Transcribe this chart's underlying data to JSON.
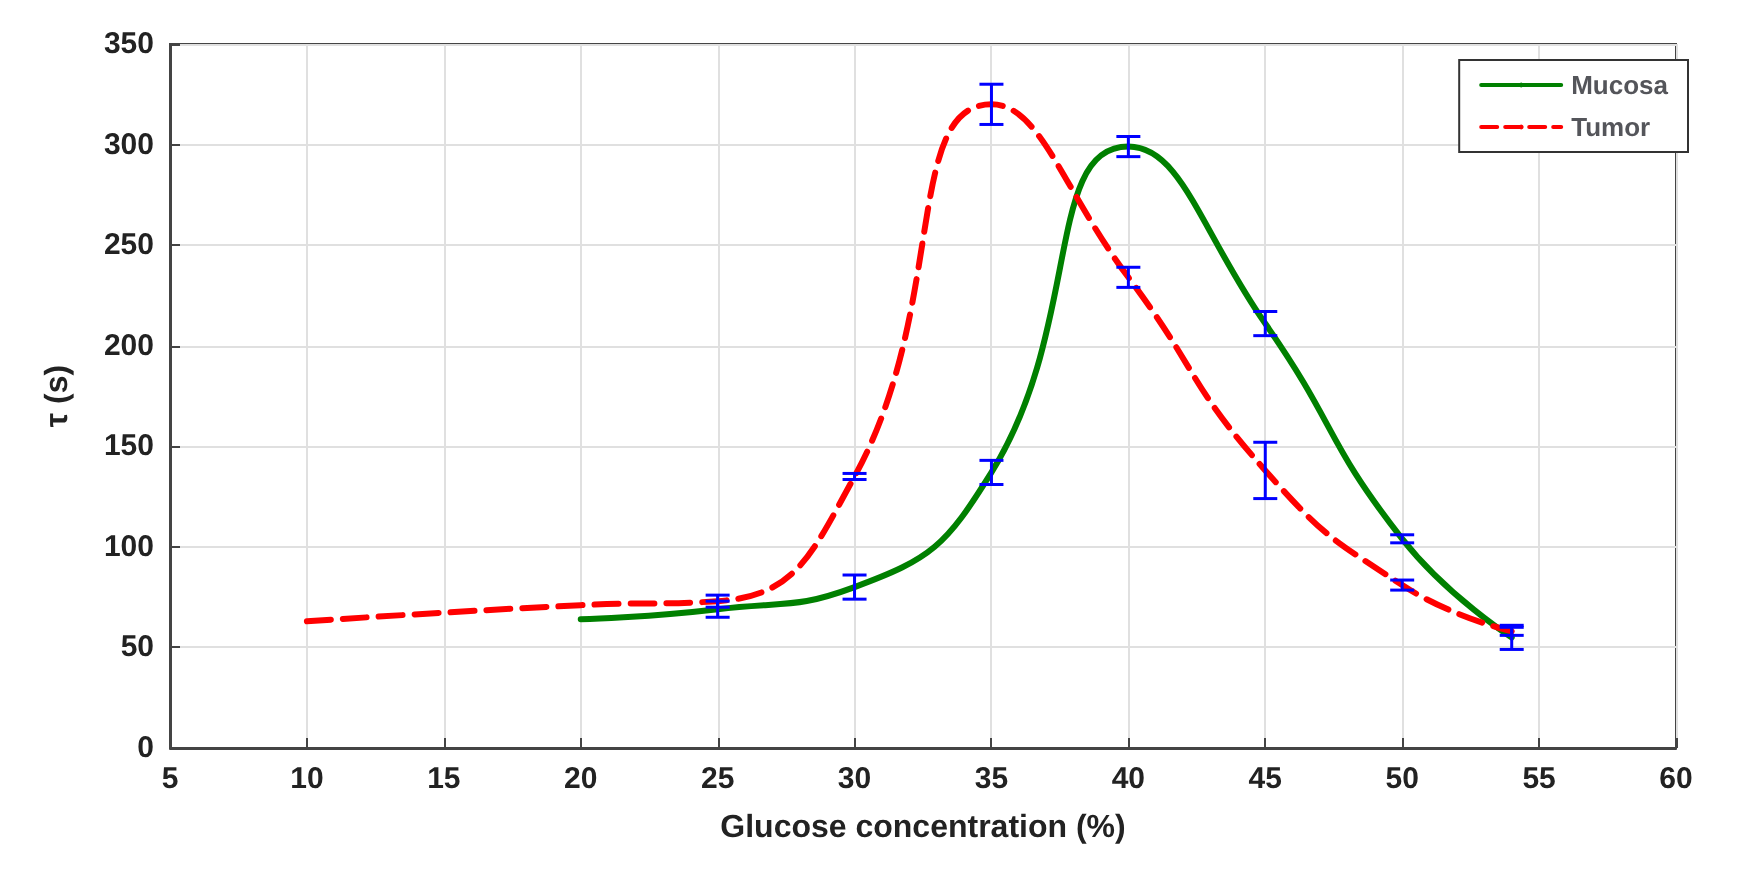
{
  "chart_data": {
    "type": "line",
    "xlabel": "Glucose concentration (%)",
    "ylabel": "τ (s)",
    "xlim": [
      5,
      60
    ],
    "xticks": [
      5,
      10,
      15,
      20,
      25,
      30,
      35,
      40,
      45,
      50,
      55,
      60
    ],
    "ylim": [
      0,
      350
    ],
    "yticks": [
      0,
      50,
      100,
      150,
      200,
      250,
      300,
      350
    ],
    "grid": true,
    "legend": "top right",
    "marker": "none",
    "series": [
      {
        "name": "Mucosa",
        "color": "#008000",
        "line_style": "solid",
        "x": [
          20,
          25,
          30,
          35,
          40,
          45,
          50,
          54
        ],
        "values": [
          64,
          69,
          80,
          137,
          299,
          211,
          104,
          55
        ],
        "errors": [
          null,
          4,
          6,
          6,
          5,
          6,
          2,
          6
        ]
      },
      {
        "name": "Tumor",
        "color": "#ff0000",
        "line_style": "dashed",
        "x": [
          10,
          20,
          25,
          30,
          35,
          40,
          45,
          50,
          54
        ],
        "values": [
          63,
          71,
          73,
          135,
          320,
          234,
          138,
          81,
          58
        ],
        "errors": [
          null,
          null,
          3,
          1.5,
          10,
          5,
          14,
          2.5,
          2
        ]
      }
    ]
  }
}
